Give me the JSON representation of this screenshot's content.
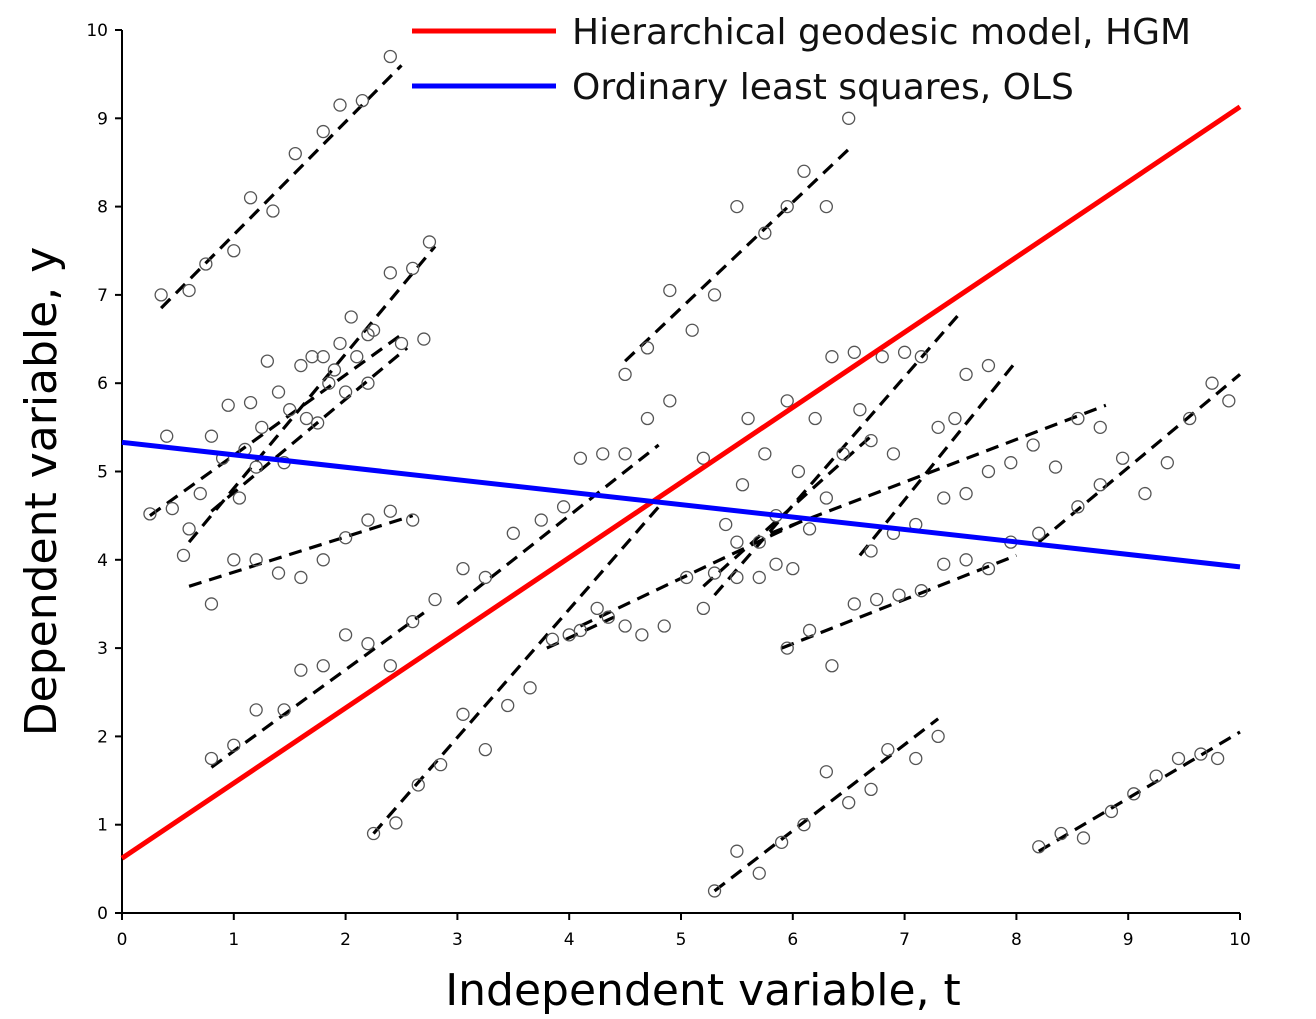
{
  "chart_data": {
    "type": "scatter",
    "xlabel": "Independent variable, t",
    "ylabel": "Dependent variable, y",
    "xlim": [
      0,
      10
    ],
    "ylim": [
      0,
      10
    ],
    "xticks": [
      0,
      1,
      2,
      3,
      4,
      5,
      6,
      7,
      8,
      9,
      10
    ],
    "yticks": [
      0,
      1,
      2,
      3,
      4,
      5,
      6,
      7,
      8,
      9,
      10
    ],
    "grid": false,
    "legend_position": "top-right",
    "lines": [
      {
        "name": "Hierarchical geodesic model, HGM",
        "color": "#ff0000",
        "x": [
          0,
          10
        ],
        "y": [
          0.62,
          9.13
        ]
      },
      {
        "name": "Ordinary least squares, OLS",
        "color": "#0000ff",
        "x": [
          0,
          10
        ],
        "y": [
          5.33,
          3.92
        ]
      }
    ],
    "subject_fits": [
      {
        "x": [
          0.35,
          2.5
        ],
        "y": [
          6.85,
          9.6
        ]
      },
      {
        "x": [
          0.6,
          2.8
        ],
        "y": [
          4.2,
          7.55
        ]
      },
      {
        "x": [
          0.25,
          2.5
        ],
        "y": [
          4.5,
          6.55
        ]
      },
      {
        "x": [
          0.8,
          2.55
        ],
        "y": [
          4.55,
          6.4
        ]
      },
      {
        "x": [
          0.6,
          2.6
        ],
        "y": [
          3.7,
          4.5
        ]
      },
      {
        "x": [
          0.8,
          2.7
        ],
        "y": [
          1.65,
          3.4
        ]
      },
      {
        "x": [
          2.25,
          4.8
        ],
        "y": [
          0.9,
          4.6
        ]
      },
      {
        "x": [
          3.0,
          4.8
        ],
        "y": [
          3.5,
          5.3
        ]
      },
      {
        "x": [
          4.5,
          6.5
        ],
        "y": [
          6.25,
          8.65
        ]
      },
      {
        "x": [
          4.1,
          6.1
        ],
        "y": [
          3.25,
          4.45
        ]
      },
      {
        "x": [
          3.8,
          4.4
        ],
        "y": [
          3.0,
          3.35
        ]
      },
      {
        "x": [
          5.3,
          7.5
        ],
        "y": [
          3.6,
          6.8
        ]
      },
      {
        "x": [
          5.2,
          6.7
        ],
        "y": [
          3.7,
          5.4
        ]
      },
      {
        "x": [
          5.8,
          8.8
        ],
        "y": [
          4.3,
          5.75
        ]
      },
      {
        "x": [
          6.6,
          8.0
        ],
        "y": [
          4.05,
          6.25
        ]
      },
      {
        "x": [
          5.9,
          8.0
        ],
        "y": [
          3.0,
          4.05
        ]
      },
      {
        "x": [
          5.3,
          7.3
        ],
        "y": [
          0.25,
          2.2
        ]
      },
      {
        "x": [
          8.2,
          10.0
        ],
        "y": [
          0.7,
          2.05
        ]
      },
      {
        "x": [
          8.2,
          10.0
        ],
        "y": [
          4.2,
          6.1
        ]
      }
    ],
    "points": [
      {
        "x": 0.35,
        "y": 7.0
      },
      {
        "x": 0.6,
        "y": 7.05
      },
      {
        "x": 0.75,
        "y": 7.35
      },
      {
        "x": 1.0,
        "y": 7.5
      },
      {
        "x": 1.15,
        "y": 8.1
      },
      {
        "x": 1.35,
        "y": 7.95
      },
      {
        "x": 1.55,
        "y": 8.6
      },
      {
        "x": 1.8,
        "y": 8.85
      },
      {
        "x": 1.95,
        "y": 9.15
      },
      {
        "x": 2.15,
        "y": 9.2
      },
      {
        "x": 2.4,
        "y": 9.7
      },
      {
        "x": 0.25,
        "y": 4.52
      },
      {
        "x": 0.45,
        "y": 4.58
      },
      {
        "x": 0.55,
        "y": 4.05
      },
      {
        "x": 0.6,
        "y": 4.35
      },
      {
        "x": 0.7,
        "y": 4.75
      },
      {
        "x": 0.9,
        "y": 5.15
      },
      {
        "x": 0.95,
        "y": 5.75
      },
      {
        "x": 1.1,
        "y": 5.25
      },
      {
        "x": 1.15,
        "y": 5.78
      },
      {
        "x": 1.25,
        "y": 5.5
      },
      {
        "x": 1.3,
        "y": 6.25
      },
      {
        "x": 1.4,
        "y": 5.9
      },
      {
        "x": 1.5,
        "y": 5.7
      },
      {
        "x": 1.6,
        "y": 6.2
      },
      {
        "x": 1.65,
        "y": 5.6
      },
      {
        "x": 1.7,
        "y": 6.3
      },
      {
        "x": 1.8,
        "y": 6.3
      },
      {
        "x": 1.85,
        "y": 6.0
      },
      {
        "x": 1.9,
        "y": 6.15
      },
      {
        "x": 1.95,
        "y": 6.45
      },
      {
        "x": 2.05,
        "y": 6.75
      },
      {
        "x": 2.1,
        "y": 6.3
      },
      {
        "x": 2.2,
        "y": 6.55
      },
      {
        "x": 2.25,
        "y": 6.6
      },
      {
        "x": 2.4,
        "y": 7.25
      },
      {
        "x": 2.5,
        "y": 6.45
      },
      {
        "x": 2.6,
        "y": 7.3
      },
      {
        "x": 2.75,
        "y": 7.6
      },
      {
        "x": 2.7,
        "y": 6.5
      },
      {
        "x": 0.4,
        "y": 5.4
      },
      {
        "x": 0.8,
        "y": 5.4
      },
      {
        "x": 1.05,
        "y": 4.7
      },
      {
        "x": 1.2,
        "y": 5.05
      },
      {
        "x": 1.45,
        "y": 5.1
      },
      {
        "x": 1.75,
        "y": 5.55
      },
      {
        "x": 2.0,
        "y": 5.9
      },
      {
        "x": 2.2,
        "y": 6.0
      },
      {
        "x": 0.8,
        "y": 3.5
      },
      {
        "x": 1.0,
        "y": 4.0
      },
      {
        "x": 1.2,
        "y": 4.0
      },
      {
        "x": 1.4,
        "y": 3.85
      },
      {
        "x": 1.6,
        "y": 3.8
      },
      {
        "x": 1.8,
        "y": 4.0
      },
      {
        "x": 2.0,
        "y": 4.25
      },
      {
        "x": 2.2,
        "y": 4.45
      },
      {
        "x": 2.4,
        "y": 4.55
      },
      {
        "x": 2.6,
        "y": 4.45
      },
      {
        "x": 0.8,
        "y": 1.75
      },
      {
        "x": 1.0,
        "y": 1.9
      },
      {
        "x": 1.2,
        "y": 2.3
      },
      {
        "x": 1.45,
        "y": 2.3
      },
      {
        "x": 1.6,
        "y": 2.75
      },
      {
        "x": 1.8,
        "y": 2.8
      },
      {
        "x": 2.0,
        "y": 3.15
      },
      {
        "x": 2.2,
        "y": 3.05
      },
      {
        "x": 2.4,
        "y": 2.8
      },
      {
        "x": 2.6,
        "y": 3.3
      },
      {
        "x": 2.8,
        "y": 3.55
      },
      {
        "x": 2.25,
        "y": 0.9
      },
      {
        "x": 2.45,
        "y": 1.02
      },
      {
        "x": 2.65,
        "y": 1.45
      },
      {
        "x": 2.85,
        "y": 1.68
      },
      {
        "x": 3.05,
        "y": 2.25
      },
      {
        "x": 3.25,
        "y": 1.85
      },
      {
        "x": 3.45,
        "y": 2.35
      },
      {
        "x": 3.65,
        "y": 2.55
      },
      {
        "x": 3.85,
        "y": 3.1
      },
      {
        "x": 4.0,
        "y": 3.15
      },
      {
        "x": 4.1,
        "y": 3.2
      },
      {
        "x": 4.25,
        "y": 3.45
      },
      {
        "x": 4.35,
        "y": 3.35
      },
      {
        "x": 4.5,
        "y": 3.25
      },
      {
        "x": 4.65,
        "y": 3.15
      },
      {
        "x": 4.85,
        "y": 3.25
      },
      {
        "x": 5.05,
        "y": 3.8
      },
      {
        "x": 5.2,
        "y": 3.45
      },
      {
        "x": 3.05,
        "y": 3.9
      },
      {
        "x": 3.25,
        "y": 3.8
      },
      {
        "x": 3.5,
        "y": 4.3
      },
      {
        "x": 3.75,
        "y": 4.45
      },
      {
        "x": 3.95,
        "y": 4.6
      },
      {
        "x": 4.1,
        "y": 5.15
      },
      {
        "x": 4.3,
        "y": 5.2
      },
      {
        "x": 4.5,
        "y": 5.2
      },
      {
        "x": 4.7,
        "y": 5.6
      },
      {
        "x": 4.9,
        "y": 5.8
      },
      {
        "x": 4.5,
        "y": 6.1
      },
      {
        "x": 4.7,
        "y": 6.4
      },
      {
        "x": 4.9,
        "y": 7.05
      },
      {
        "x": 5.1,
        "y": 6.6
      },
      {
        "x": 5.3,
        "y": 7.0
      },
      {
        "x": 5.5,
        "y": 8.0
      },
      {
        "x": 5.75,
        "y": 7.7
      },
      {
        "x": 5.95,
        "y": 8.0
      },
      {
        "x": 6.1,
        "y": 8.4
      },
      {
        "x": 6.3,
        "y": 8.0
      },
      {
        "x": 6.5,
        "y": 9.0
      },
      {
        "x": 5.2,
        "y": 5.15
      },
      {
        "x": 5.4,
        "y": 4.4
      },
      {
        "x": 5.5,
        "y": 4.2
      },
      {
        "x": 5.55,
        "y": 4.85
      },
      {
        "x": 5.6,
        "y": 5.6
      },
      {
        "x": 5.7,
        "y": 4.2
      },
      {
        "x": 5.75,
        "y": 5.2
      },
      {
        "x": 5.85,
        "y": 4.5
      },
      {
        "x": 5.95,
        "y": 5.8
      },
      {
        "x": 6.05,
        "y": 5.0
      },
      {
        "x": 6.15,
        "y": 4.35
      },
      {
        "x": 6.2,
        "y": 5.6
      },
      {
        "x": 6.3,
        "y": 4.7
      },
      {
        "x": 6.35,
        "y": 6.3
      },
      {
        "x": 6.45,
        "y": 5.2
      },
      {
        "x": 6.55,
        "y": 6.35
      },
      {
        "x": 6.6,
        "y": 5.7
      },
      {
        "x": 6.7,
        "y": 5.35
      },
      {
        "x": 6.8,
        "y": 6.3
      },
      {
        "x": 6.9,
        "y": 5.2
      },
      {
        "x": 7.0,
        "y": 6.35
      },
      {
        "x": 7.15,
        "y": 6.3
      },
      {
        "x": 7.3,
        "y": 5.5
      },
      {
        "x": 7.45,
        "y": 5.6
      },
      {
        "x": 7.55,
        "y": 6.1
      },
      {
        "x": 7.75,
        "y": 6.2
      },
      {
        "x": 5.3,
        "y": 3.85
      },
      {
        "x": 5.5,
        "y": 3.8
      },
      {
        "x": 5.7,
        "y": 3.8
      },
      {
        "x": 5.85,
        "y": 3.95
      },
      {
        "x": 6.0,
        "y": 3.9
      },
      {
        "x": 5.95,
        "y": 3.0
      },
      {
        "x": 6.15,
        "y": 3.2
      },
      {
        "x": 6.35,
        "y": 2.8
      },
      {
        "x": 6.55,
        "y": 3.5
      },
      {
        "x": 6.75,
        "y": 3.55
      },
      {
        "x": 6.95,
        "y": 3.6
      },
      {
        "x": 7.15,
        "y": 3.65
      },
      {
        "x": 7.35,
        "y": 3.95
      },
      {
        "x": 7.55,
        "y": 4.0
      },
      {
        "x": 7.75,
        "y": 3.9
      },
      {
        "x": 6.7,
        "y": 4.1
      },
      {
        "x": 6.9,
        "y": 4.3
      },
      {
        "x": 7.1,
        "y": 4.4
      },
      {
        "x": 7.35,
        "y": 4.7
      },
      {
        "x": 7.55,
        "y": 4.75
      },
      {
        "x": 7.75,
        "y": 5.0
      },
      {
        "x": 7.95,
        "y": 5.1
      },
      {
        "x": 8.15,
        "y": 5.3
      },
      {
        "x": 8.35,
        "y": 5.05
      },
      {
        "x": 8.55,
        "y": 5.6
      },
      {
        "x": 8.75,
        "y": 5.5
      },
      {
        "x": 8.95,
        "y": 5.15
      },
      {
        "x": 9.15,
        "y": 4.75
      },
      {
        "x": 9.35,
        "y": 5.1
      },
      {
        "x": 9.55,
        "y": 5.6
      },
      {
        "x": 9.75,
        "y": 6.0
      },
      {
        "x": 9.9,
        "y": 5.8
      },
      {
        "x": 8.55,
        "y": 4.6
      },
      {
        "x": 8.75,
        "y": 4.85
      },
      {
        "x": 7.95,
        "y": 4.2
      },
      {
        "x": 8.2,
        "y": 4.3
      },
      {
        "x": 5.3,
        "y": 0.25
      },
      {
        "x": 5.5,
        "y": 0.7
      },
      {
        "x": 5.7,
        "y": 0.45
      },
      {
        "x": 5.9,
        "y": 0.8
      },
      {
        "x": 6.1,
        "y": 1.0
      },
      {
        "x": 6.3,
        "y": 1.6
      },
      {
        "x": 6.5,
        "y": 1.25
      },
      {
        "x": 6.7,
        "y": 1.4
      },
      {
        "x": 6.85,
        "y": 1.85
      },
      {
        "x": 7.1,
        "y": 1.75
      },
      {
        "x": 7.3,
        "y": 2.0
      },
      {
        "x": 8.2,
        "y": 0.75
      },
      {
        "x": 8.4,
        "y": 0.9
      },
      {
        "x": 8.6,
        "y": 0.85
      },
      {
        "x": 8.85,
        "y": 1.15
      },
      {
        "x": 9.05,
        "y": 1.35
      },
      {
        "x": 9.25,
        "y": 1.55
      },
      {
        "x": 9.45,
        "y": 1.75
      },
      {
        "x": 9.65,
        "y": 1.8
      },
      {
        "x": 9.8,
        "y": 1.75
      }
    ]
  },
  "colors": {
    "hgm": "#ff0000",
    "ols": "#0000ff",
    "subject_fit": "#000000",
    "points": "#555555"
  }
}
